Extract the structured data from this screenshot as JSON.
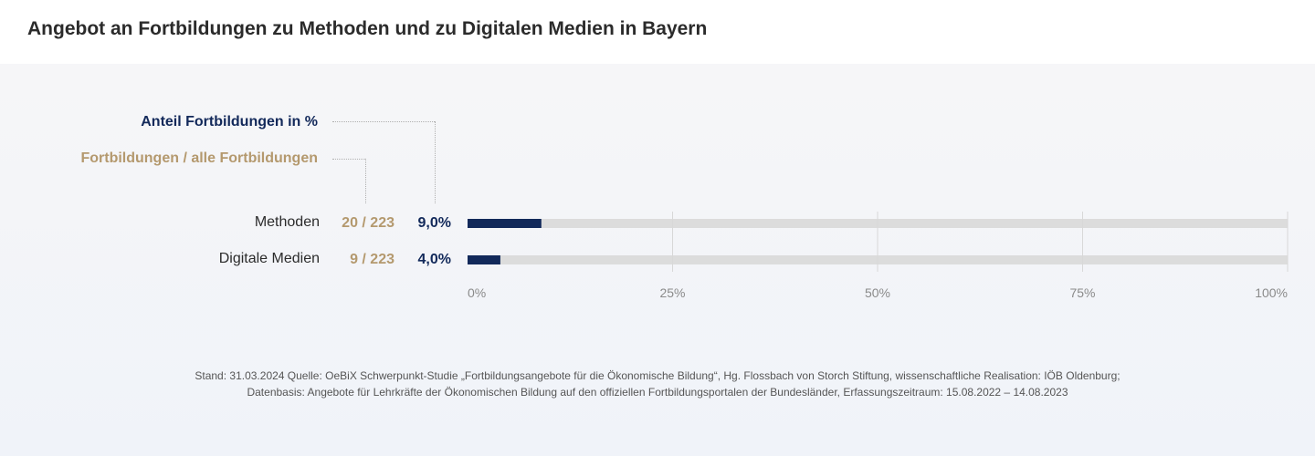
{
  "title": "Angebot an Fortbildungen zu Methoden und zu Digitalen Medien in Bayern",
  "legend": {
    "percent_label": "Anteil Fortbildungen  in %",
    "ratio_label": "Fortbildungen / alle Fortbildungen"
  },
  "colors": {
    "bar": "#12295a",
    "track": "#dcdcdc",
    "ratio": "#b4996e",
    "percent": "#12295a",
    "grid": "#d8d8d8"
  },
  "chart_data": {
    "type": "bar",
    "orientation": "horizontal",
    "categories": [
      "Methoden",
      "Digitale Medien"
    ],
    "values": [
      9.0,
      4.0
    ],
    "ratios": [
      "20 / 223",
      "9 / 223"
    ],
    "value_labels": [
      "9,0%",
      "4,0%"
    ],
    "xlim": [
      0,
      100
    ],
    "xticks": [
      0,
      25,
      50,
      75,
      100
    ],
    "xtick_labels": [
      "0%",
      "25%",
      "50%",
      "75%",
      "100%"
    ],
    "grid": true
  },
  "footer": {
    "line1": "Stand: 31.03.2024 Quelle: OeBiX Schwerpunkt-Studie „Fortbildungsangebote für die Ökonomische Bildung“, Hg. Flossbach von Storch Stiftung, wissenschaftliche Realisation: IÖB Oldenburg;",
    "line2": "Datenbasis: Angebote für Lehrkräfte der Ökonomischen Bildung auf den offiziellen Fortbildungsportalen der Bundesländer, Erfassungszeitraum: 15.08.2022 – 14.08.2023"
  }
}
